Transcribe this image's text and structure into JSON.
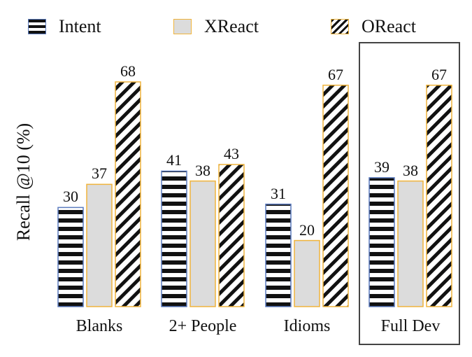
{
  "chart_data": {
    "type": "bar",
    "title": "",
    "xlabel": "",
    "ylabel": "Recall @10 (%)",
    "ylim": [
      0,
      75
    ],
    "categories": [
      "Blanks",
      "2+ People",
      "Idioms",
      "Full Dev"
    ],
    "series": [
      {
        "name": "Intent",
        "values": [
          30,
          41,
          31,
          39
        ],
        "pattern": "horizontal-stripes",
        "fill": "#111111",
        "border": "#5b7bbf"
      },
      {
        "name": "XReact",
        "values": [
          37,
          38,
          20,
          38
        ],
        "pattern": "solid",
        "fill": "#dcdcdc",
        "border": "#f0b43c"
      },
      {
        "name": "OReact",
        "values": [
          68,
          43,
          67,
          67
        ],
        "pattern": "diagonal-stripes",
        "fill": "#111111",
        "border": "#f0b43c"
      }
    ],
    "grid": false,
    "legend_position": "top",
    "highlighted_category": "Full Dev"
  }
}
